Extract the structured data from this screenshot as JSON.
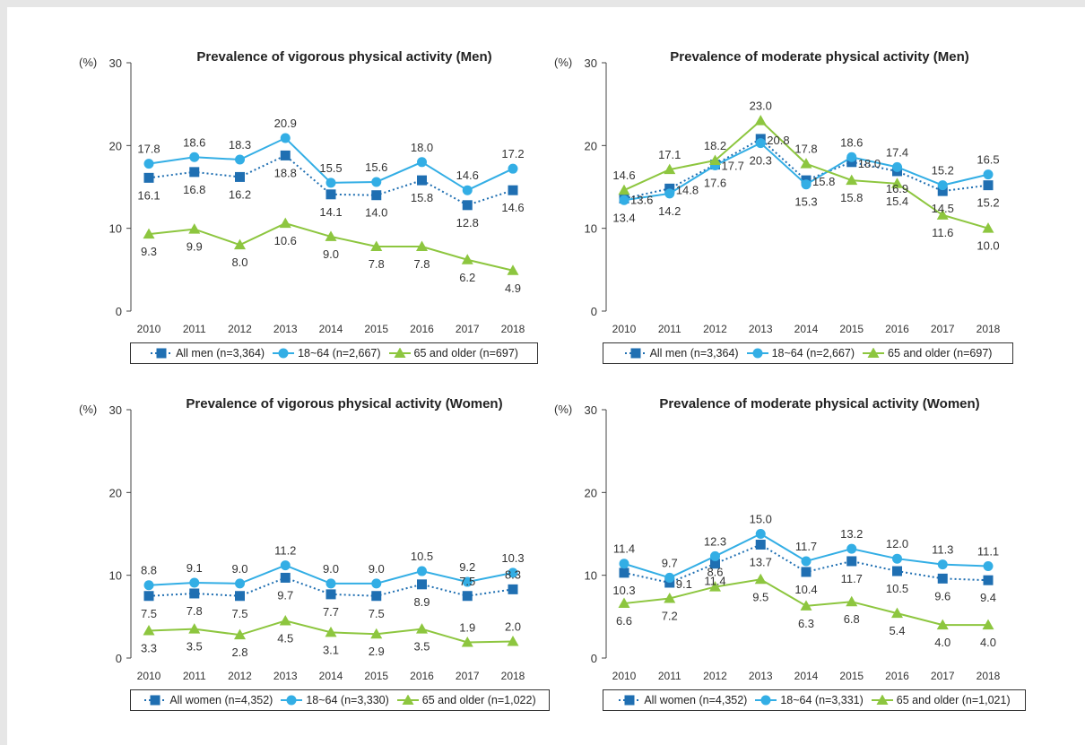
{
  "colors": {
    "all": "#1f6fb2",
    "adult": "#33aee5",
    "older": "#8dc63f",
    "axis": "#444444",
    "text": "#333333"
  },
  "y_unit": "(%)",
  "chart_data": [
    {
      "type": "line",
      "title": "Prevalence of vigorous physical activity (Men)",
      "x": [
        "2010",
        "2011",
        "2012",
        "2013",
        "2014",
        "2015",
        "2016",
        "2017",
        "2018"
      ],
      "ylim": [
        0,
        30
      ],
      "yticks": [
        0,
        10,
        20,
        30
      ],
      "legend_position": "bottom",
      "series": [
        {
          "name": "All men (n=3,364)",
          "marker": "square",
          "style": "dotted",
          "color": "#1f6fb2",
          "values": [
            16.1,
            16.8,
            16.2,
            18.8,
            14.1,
            14.0,
            15.8,
            12.8,
            14.6
          ],
          "label_pos": [
            "below",
            "below",
            "below",
            "below",
            "below",
            "below",
            "below",
            "below",
            "below"
          ]
        },
        {
          "name": "18~64 (n=2,667)",
          "marker": "circle",
          "style": "solid",
          "color": "#33aee5",
          "values": [
            17.8,
            18.6,
            18.3,
            20.9,
            15.5,
            15.6,
            18.0,
            14.6,
            17.2
          ],
          "label_pos": [
            "above",
            "above",
            "above",
            "above",
            "above",
            "above",
            "above",
            "above",
            "above"
          ]
        },
        {
          "name": "65 and older (n=697)",
          "marker": "triangle",
          "style": "solid",
          "color": "#8dc63f",
          "values": [
            9.3,
            9.9,
            8.0,
            10.6,
            9.0,
            7.8,
            7.8,
            6.2,
            4.9
          ],
          "label_pos": [
            "below",
            "below",
            "below",
            "below",
            "below",
            "below",
            "below",
            "below",
            "below"
          ]
        }
      ]
    },
    {
      "type": "line",
      "title": "Prevalence of moderate physical activity (Men)",
      "x": [
        "2010",
        "2011",
        "2012",
        "2013",
        "2014",
        "2015",
        "2016",
        "2017",
        "2018"
      ],
      "ylim": [
        0,
        30
      ],
      "yticks": [
        0,
        10,
        20,
        30
      ],
      "legend_position": "bottom",
      "series": [
        {
          "name": "All men (n=3,364)",
          "marker": "square",
          "style": "dotted",
          "color": "#1f6fb2",
          "values": [
            13.6,
            14.8,
            17.7,
            20.8,
            15.8,
            18.0,
            16.9,
            14.5,
            15.2
          ],
          "label_pos": [
            "right",
            "right",
            "right",
            "right",
            "right",
            "right",
            "below",
            "below",
            "below"
          ]
        },
        {
          "name": "18~64 (n=2,667)",
          "marker": "circle",
          "style": "solid",
          "color": "#33aee5",
          "values": [
            13.4,
            14.2,
            17.6,
            20.3,
            15.3,
            18.6,
            17.4,
            15.2,
            16.5
          ],
          "label_pos": [
            "below",
            "below",
            "below",
            "below",
            "below",
            "above",
            "above",
            "above",
            "above"
          ]
        },
        {
          "name": "65 and older (n=697)",
          "marker": "triangle",
          "style": "solid",
          "color": "#8dc63f",
          "values": [
            14.6,
            17.1,
            18.2,
            23.0,
            17.8,
            15.8,
            15.4,
            11.6,
            10.0
          ],
          "label_pos": [
            "above",
            "above",
            "above",
            "above",
            "above",
            "below",
            "below",
            "below",
            "below"
          ]
        }
      ]
    },
    {
      "type": "line",
      "title": "Prevalence of vigorous physical activity (Women)",
      "x": [
        "2010",
        "2011",
        "2012",
        "2013",
        "2014",
        "2015",
        "2016",
        "2017",
        "2018"
      ],
      "ylim": [
        0,
        30
      ],
      "yticks": [
        0,
        10,
        20,
        30
      ],
      "legend_position": "bottom",
      "series": [
        {
          "name": "All women (n=4,352)",
          "marker": "square",
          "style": "dotted",
          "color": "#1f6fb2",
          "values": [
            7.5,
            7.8,
            7.5,
            9.7,
            7.7,
            7.5,
            8.9,
            7.5,
            8.3
          ],
          "label_pos": [
            "below",
            "below",
            "below",
            "below",
            "below",
            "below",
            "below",
            "above",
            "above"
          ]
        },
        {
          "name": "18~64 (n=3,330)",
          "marker": "circle",
          "style": "solid",
          "color": "#33aee5",
          "values": [
            8.8,
            9.1,
            9.0,
            11.2,
            9.0,
            9.0,
            10.5,
            9.2,
            10.3
          ],
          "label_pos": [
            "above",
            "above",
            "above",
            "above",
            "above",
            "above",
            "above",
            "above",
            "above"
          ]
        },
        {
          "name": "65 and older (n=1,022)",
          "marker": "triangle",
          "style": "solid",
          "color": "#8dc63f",
          "values": [
            3.3,
            3.5,
            2.8,
            4.5,
            3.1,
            2.9,
            3.5,
            1.9,
            2.0
          ],
          "label_pos": [
            "below",
            "below",
            "below",
            "below",
            "below",
            "below",
            "below",
            "above",
            "above"
          ]
        }
      ]
    },
    {
      "type": "line",
      "title": "Prevalence of moderate physical activity (Women)",
      "x": [
        "2010",
        "2011",
        "2012",
        "2013",
        "2014",
        "2015",
        "2016",
        "2017",
        "2018"
      ],
      "ylim": [
        0,
        30
      ],
      "yticks": [
        0,
        10,
        20,
        30
      ],
      "legend_position": "bottom",
      "series": [
        {
          "name": "All women (n=4,352)",
          "marker": "square",
          "style": "dotted",
          "color": "#1f6fb2",
          "values": [
            10.3,
            9.1,
            11.4,
            13.7,
            10.4,
            11.7,
            10.5,
            9.6,
            9.4
          ],
          "label_pos": [
            "below",
            "right",
            "below",
            "below",
            "below",
            "below",
            "below",
            "below",
            "below"
          ]
        },
        {
          "name": "18~64 (n=3,331)",
          "marker": "circle",
          "style": "solid",
          "color": "#33aee5",
          "values": [
            11.4,
            9.7,
            12.3,
            15.0,
            11.7,
            13.2,
            12.0,
            11.3,
            11.1
          ],
          "label_pos": [
            "above",
            "above",
            "above",
            "above",
            "above",
            "above",
            "above",
            "above",
            "above"
          ]
        },
        {
          "name": "65 and older (n=1,021)",
          "marker": "triangle",
          "style": "solid",
          "color": "#8dc63f",
          "values": [
            6.6,
            7.2,
            8.6,
            9.5,
            6.3,
            6.8,
            5.4,
            4.0,
            4.0
          ],
          "label_pos": [
            "below",
            "below",
            "above",
            "below",
            "below",
            "below",
            "below",
            "below",
            "below"
          ]
        }
      ]
    }
  ]
}
